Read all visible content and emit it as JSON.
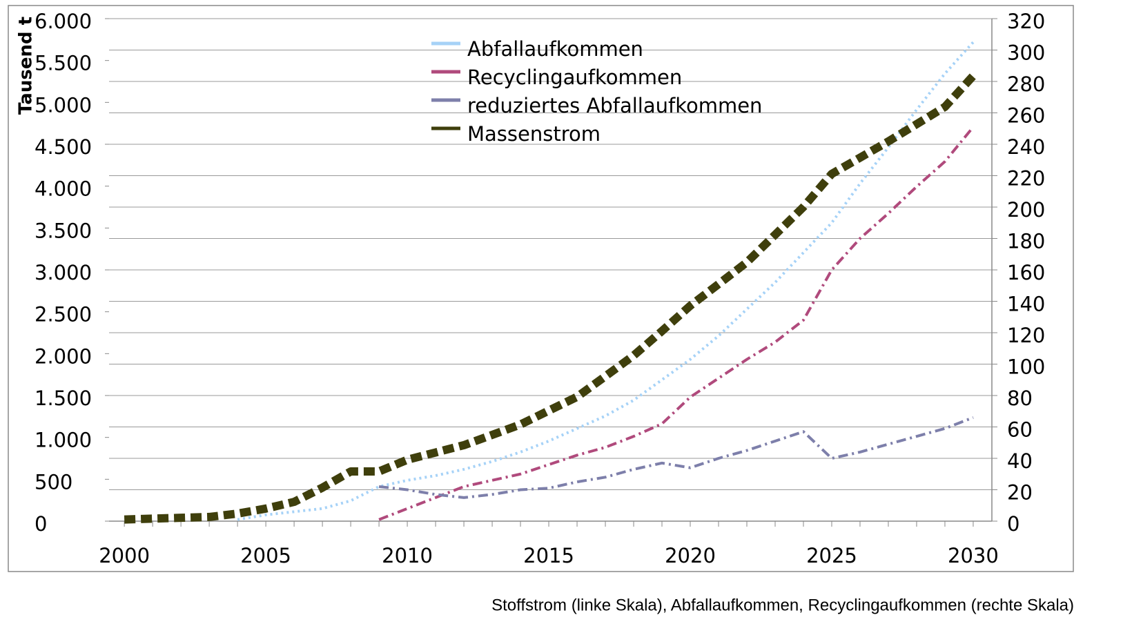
{
  "chart_data": {
    "type": "line",
    "y_label": "Tausend t",
    "caption": "Stoffstrom (linke Skala), Abfallaufkommen, Recyclingaufkommen (rechte Skala)",
    "x": [
      2000,
      2001,
      2002,
      2003,
      2004,
      2005,
      2006,
      2007,
      2008,
      2009,
      2010,
      2011,
      2012,
      2013,
      2014,
      2015,
      2016,
      2017,
      2018,
      2019,
      2020,
      2021,
      2022,
      2023,
      2024,
      2025,
      2026,
      2027,
      2028,
      2029,
      2030
    ],
    "xlim": [
      1999.46,
      2030.66
    ],
    "xticks": [
      2000,
      2005,
      2010,
      2015,
      2020,
      2025,
      2030
    ],
    "ylim": [
      0,
      6000
    ],
    "yticks": [
      0,
      500,
      {
        "value": 1000,
        "label": "1.000"
      },
      {
        "value": 1500,
        "label": "1.500"
      },
      {
        "value": 2000,
        "label": "2.000"
      },
      {
        "value": 2500,
        "label": "2.500"
      },
      {
        "value": 3000,
        "label": "3.000"
      },
      {
        "value": 3500,
        "label": "3.500"
      },
      {
        "value": 4000,
        "label": "4.000"
      },
      {
        "value": 4500,
        "label": "4.500"
      },
      {
        "value": 5000,
        "label": "5.000"
      },
      {
        "value": 5500,
        "label": "5.500"
      },
      {
        "value": 6000,
        "label": "6.000"
      }
    ],
    "y2lim": [
      0,
      320
    ],
    "y2ticks": [
      0,
      20,
      40,
      60,
      80,
      100,
      120,
      140,
      160,
      180,
      200,
      220,
      240,
      260,
      280,
      300,
      320
    ],
    "grid": true,
    "legend": "top",
    "series": [
      {
        "name": "Abfallaufkommen",
        "color": "#a6d2f7",
        "axis": "y2",
        "dash": "dotted",
        "values": [
          null,
          null,
          null,
          null,
          1,
          4,
          6,
          8,
          13,
          22,
          26,
          29,
          33,
          38,
          44,
          51,
          59,
          67,
          77,
          90,
          103,
          118,
          135,
          152,
          171,
          190,
          215,
          238,
          262,
          285,
          305
        ]
      },
      {
        "name": "Recyclingaufkommen",
        "color": "#b04a7c",
        "axis": "y2",
        "dash": "dashdot",
        "values": [
          null,
          null,
          null,
          null,
          null,
          null,
          null,
          null,
          null,
          1,
          8,
          15,
          22,
          26,
          30,
          36,
          42,
          47,
          54,
          62,
          79,
          91,
          103,
          114,
          128,
          160,
          180,
          196,
          213,
          229,
          251
        ]
      },
      {
        "name": "reduziertes Abfallaufkommen",
        "color": "#7d7faa",
        "axis": "y2",
        "dash": "dashdot",
        "values": [
          null,
          null,
          null,
          null,
          null,
          null,
          null,
          null,
          null,
          22,
          20,
          17,
          15,
          17,
          20,
          21,
          25,
          28,
          33,
          37,
          34,
          40,
          45,
          51,
          57,
          40,
          44,
          49,
          54,
          59,
          66
        ]
      },
      {
        "name": "Massenstrom",
        "color": "#3f3f0c",
        "axis": "y",
        "dash": "dashed",
        "values": [
          20,
          30,
          40,
          50,
          90,
          150,
          230,
          400,
          593,
          593,
          733,
          820,
          907,
          1030,
          1154,
          1320,
          1484,
          1730,
          1978,
          2270,
          2572,
          2830,
          3091,
          3420,
          3751,
          4146,
          4340,
          4534,
          4740,
          4946,
          5317
        ]
      }
    ]
  }
}
